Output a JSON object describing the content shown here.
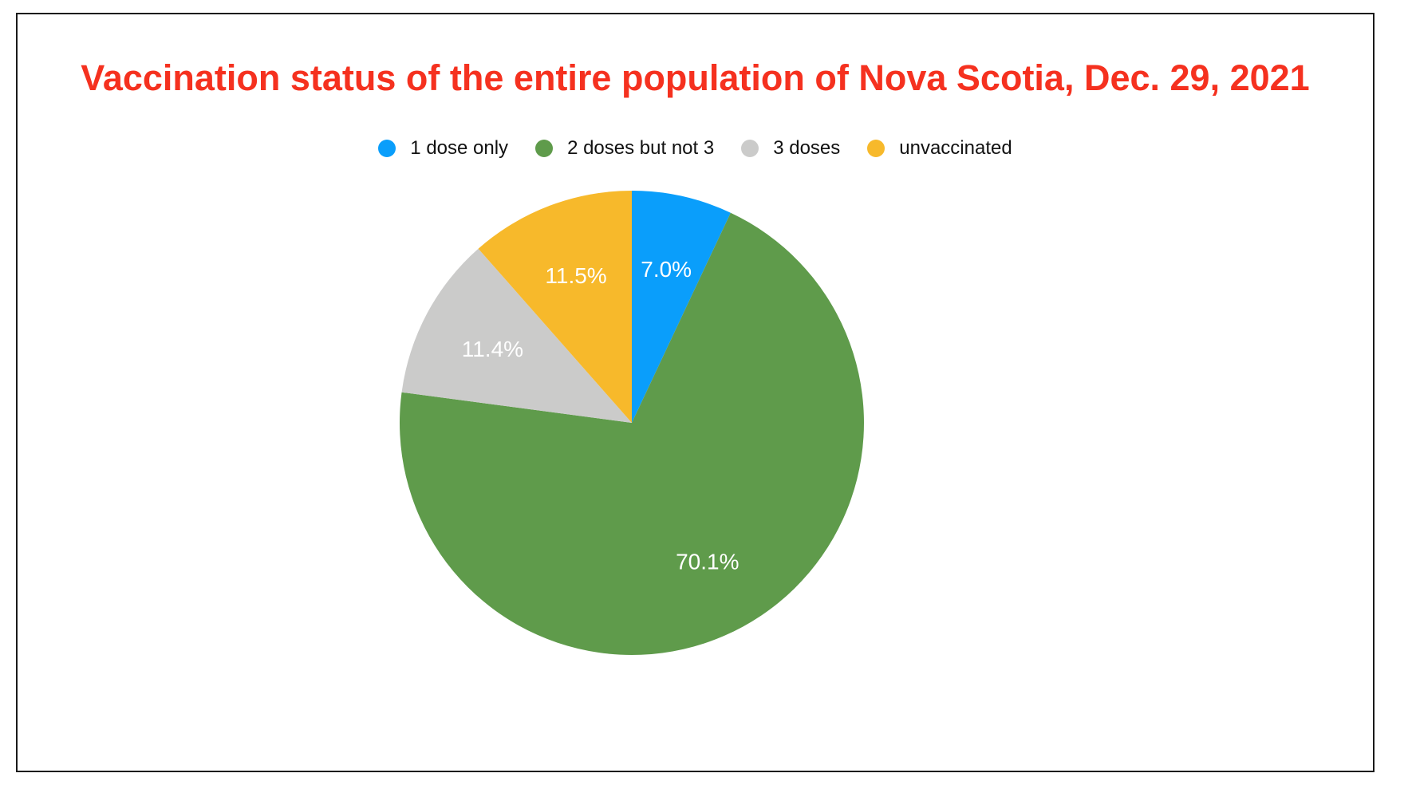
{
  "chart_data": {
    "type": "pie",
    "title": "Vaccination status of the entire population of Nova Scotia, Dec. 29, 2021",
    "legend_position": "top-center",
    "slices": [
      {
        "name": "1 dose only",
        "value": 7.0,
        "label": "7.0%",
        "color": "#0a9efb"
      },
      {
        "name": "2 doses but not 3",
        "value": 70.1,
        "label": "70.1%",
        "color": "#5f9b4b"
      },
      {
        "name": "3 doses",
        "value": 11.4,
        "label": "11.4%",
        "color": "#cbcbca"
      },
      {
        "name": "unvaccinated",
        "value": 11.5,
        "label": "11.5%",
        "color": "#f7b92b"
      }
    ]
  }
}
